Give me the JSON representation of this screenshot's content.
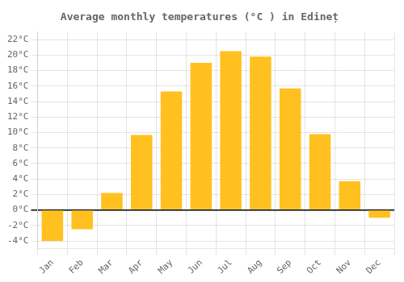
{
  "chart_data": {
    "type": "bar",
    "title": "Average monthly temperatures (°C ) in Edineț",
    "categories": [
      "Jan",
      "Feb",
      "Mar",
      "Apr",
      "May",
      "Jun",
      "Jul",
      "Aug",
      "Sep",
      "Oct",
      "Nov",
      "Dec"
    ],
    "values": [
      -4.0,
      -2.5,
      2.2,
      9.7,
      15.3,
      19.0,
      20.5,
      19.8,
      15.7,
      9.8,
      3.7,
      -1.0
    ],
    "color": "#FFC020",
    "ylim": [
      -5.0,
      23.0
    ],
    "yticks": [
      {
        "value": -4,
        "label": "-4°C"
      },
      {
        "value": -2,
        "label": "-2°C"
      },
      {
        "value": 0,
        "label": "0°C"
      },
      {
        "value": 2,
        "label": "2°C"
      },
      {
        "value": 4,
        "label": "4°C"
      },
      {
        "value": 6,
        "label": "6°C"
      },
      {
        "value": 8,
        "label": "8°C"
      },
      {
        "value": 10,
        "label": "10°C"
      },
      {
        "value": 12,
        "label": "12°C"
      },
      {
        "value": 14,
        "label": "14°C"
      },
      {
        "value": 16,
        "label": "16°C"
      },
      {
        "value": 18,
        "label": "18°C"
      },
      {
        "value": 20,
        "label": "20°C"
      },
      {
        "value": 22,
        "label": "22°C"
      }
    ],
    "grid": true
  }
}
